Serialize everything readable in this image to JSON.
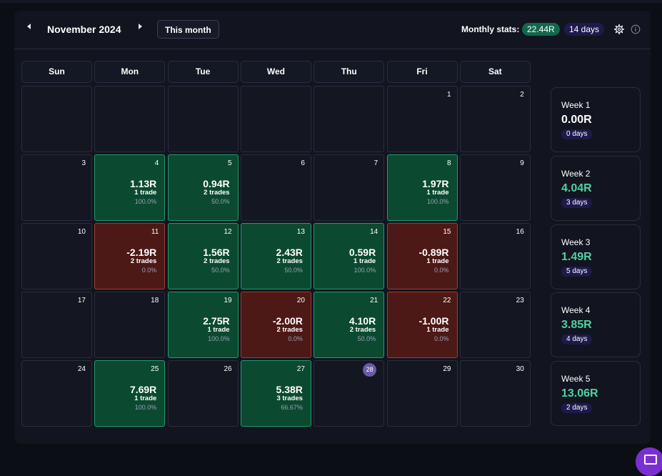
{
  "header": {
    "month_title": "November 2024",
    "this_month_label": "This month",
    "monthly_stats_label": "Monthly stats:",
    "monthly_r": "22.44R",
    "monthly_days": "14 days"
  },
  "weekdays": [
    "Sun",
    "Mon",
    "Tue",
    "Wed",
    "Thu",
    "Fri",
    "Sat"
  ],
  "colors": {
    "positive": "#0b4a30",
    "negative": "#4c1916",
    "positive_text": "#4fd1a1",
    "neutral_text": "#ffffff",
    "accent_badge": "#11684a",
    "days_badge": "#1d1a4c"
  },
  "days": [
    {
      "day": 1,
      "week": 0,
      "col": 5
    },
    {
      "day": 2,
      "week": 0,
      "col": 6
    },
    {
      "day": 3,
      "week": 1,
      "col": 0
    },
    {
      "day": 4,
      "week": 1,
      "col": 1,
      "r": "1.13R",
      "trades": "1 trade",
      "pct": "100.0%",
      "status": "pos"
    },
    {
      "day": 5,
      "week": 1,
      "col": 2,
      "r": "0.94R",
      "trades": "2 trades",
      "pct": "50.0%",
      "status": "pos"
    },
    {
      "day": 6,
      "week": 1,
      "col": 3
    },
    {
      "day": 7,
      "week": 1,
      "col": 4
    },
    {
      "day": 8,
      "week": 1,
      "col": 5,
      "r": "1.97R",
      "trades": "1 trade",
      "pct": "100.0%",
      "status": "pos"
    },
    {
      "day": 9,
      "week": 1,
      "col": 6
    },
    {
      "day": 10,
      "week": 2,
      "col": 0
    },
    {
      "day": 11,
      "week": 2,
      "col": 1,
      "r": "-2.19R",
      "trades": "2 trades",
      "pct": "0.0%",
      "status": "neg"
    },
    {
      "day": 12,
      "week": 2,
      "col": 2,
      "r": "1.56R",
      "trades": "2 trades",
      "pct": "50.0%",
      "status": "pos"
    },
    {
      "day": 13,
      "week": 2,
      "col": 3,
      "r": "2.43R",
      "trades": "2 trades",
      "pct": "50.0%",
      "status": "pos"
    },
    {
      "day": 14,
      "week": 2,
      "col": 4,
      "r": "0.59R",
      "trades": "1 trade",
      "pct": "100.0%",
      "status": "pos"
    },
    {
      "day": 15,
      "week": 2,
      "col": 5,
      "r": "-0.89R",
      "trades": "1 trade",
      "pct": "0.0%",
      "status": "neg"
    },
    {
      "day": 16,
      "week": 2,
      "col": 6
    },
    {
      "day": 17,
      "week": 3,
      "col": 0
    },
    {
      "day": 18,
      "week": 3,
      "col": 1
    },
    {
      "day": 19,
      "week": 3,
      "col": 2,
      "r": "2.75R",
      "trades": "1 trade",
      "pct": "100.0%",
      "status": "pos"
    },
    {
      "day": 20,
      "week": 3,
      "col": 3,
      "r": "-2.00R",
      "trades": "2 trades",
      "pct": "0.0%",
      "status": "neg"
    },
    {
      "day": 21,
      "week": 3,
      "col": 4,
      "r": "4.10R",
      "trades": "2 trades",
      "pct": "50.0%",
      "status": "pos"
    },
    {
      "day": 22,
      "week": 3,
      "col": 5,
      "r": "-1.00R",
      "trades": "1 trade",
      "pct": "0.0%",
      "status": "neg"
    },
    {
      "day": 23,
      "week": 3,
      "col": 6
    },
    {
      "day": 24,
      "week": 4,
      "col": 0
    },
    {
      "day": 25,
      "week": 4,
      "col": 1,
      "r": "7.69R",
      "trades": "1 trade",
      "pct": "100.0%",
      "status": "pos"
    },
    {
      "day": 26,
      "week": 4,
      "col": 2
    },
    {
      "day": 27,
      "week": 4,
      "col": 3,
      "r": "5.38R",
      "trades": "3 trades",
      "pct": "66.67%",
      "status": "pos"
    },
    {
      "day": 28,
      "week": 4,
      "col": 4,
      "today": true
    },
    {
      "day": 29,
      "week": 4,
      "col": 5
    },
    {
      "day": 30,
      "week": 4,
      "col": 6
    }
  ],
  "weeks": [
    {
      "label": "Week 1",
      "r": "0.00R",
      "days": "0 days",
      "positive": false
    },
    {
      "label": "Week 2",
      "r": "4.04R",
      "days": "3 days",
      "positive": true
    },
    {
      "label": "Week 3",
      "r": "1.49R",
      "days": "5 days",
      "positive": true
    },
    {
      "label": "Week 4",
      "r": "3.85R",
      "days": "4 days",
      "positive": true
    },
    {
      "label": "Week 5",
      "r": "13.06R",
      "days": "2 days",
      "positive": true
    }
  ]
}
